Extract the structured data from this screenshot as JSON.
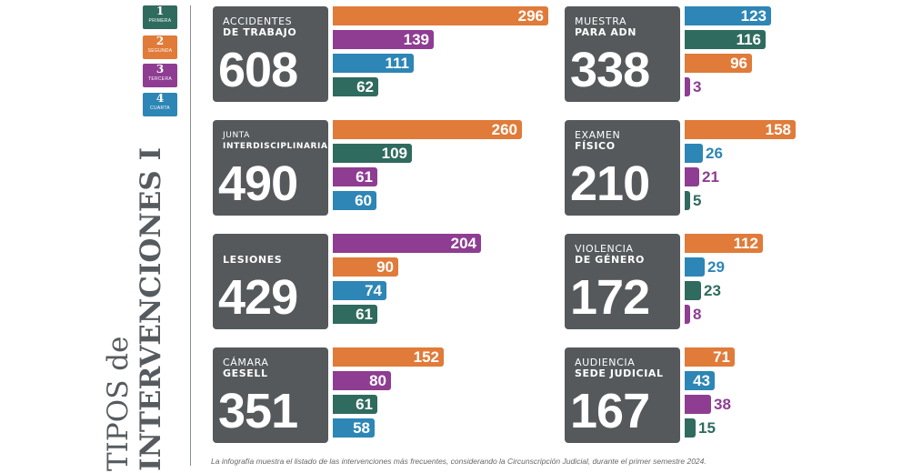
{
  "title": {
    "line1": "TIPOS de",
    "line2": "INTERVENCIONES I"
  },
  "legend": [
    {
      "num": "1",
      "label": "PRIMERA",
      "color": "#2f6b5e"
    },
    {
      "num": "2",
      "label": "SEGUNDA",
      "color": "#e07b39"
    },
    {
      "num": "3",
      "label": "TERCERA",
      "color": "#8e3d92"
    },
    {
      "num": "4",
      "label": "CUARTA",
      "color": "#2d86b5"
    }
  ],
  "footnote": "La infografía muestra el listado de las intervenciones más frecuentes, considerando la Circunscripción Judicial, durante el primer semestre  2024.",
  "colors": {
    "primera": "#2f6b5e",
    "segunda": "#e07b39",
    "tercera": "#8e3d92",
    "cuarta": "#2d86b5",
    "card": "#55595c"
  },
  "chart_data": {
    "type": "bar",
    "series_names": [
      "PRIMERA",
      "SEGUNDA",
      "TERCERA",
      "CUARTA"
    ],
    "groups": [
      {
        "label1": "ACCIDENTES",
        "label2": "DE TRABAJO",
        "total": 608,
        "bars": [
          {
            "series": "SEGUNDA",
            "value": 296
          },
          {
            "series": "TERCERA",
            "value": 139
          },
          {
            "series": "CUARTA",
            "value": 111
          },
          {
            "series": "PRIMERA",
            "value": 62
          }
        ]
      },
      {
        "label1": "JUNTA",
        "label2": "INTERDISCIPLINARIA",
        "total": 490,
        "bars": [
          {
            "series": "SEGUNDA",
            "value": 260
          },
          {
            "series": "PRIMERA",
            "value": 109
          },
          {
            "series": "TERCERA",
            "value": 61
          },
          {
            "series": "CUARTA",
            "value": 60
          }
        ]
      },
      {
        "label1": "",
        "label2": "LESIONES",
        "total": 429,
        "bars": [
          {
            "series": "TERCERA",
            "value": 204
          },
          {
            "series": "SEGUNDA",
            "value": 90
          },
          {
            "series": "CUARTA",
            "value": 74
          },
          {
            "series": "PRIMERA",
            "value": 61
          }
        ]
      },
      {
        "label1": "CÁMARA",
        "label2": "GESELL",
        "total": 351,
        "bars": [
          {
            "series": "SEGUNDA",
            "value": 152
          },
          {
            "series": "TERCERA",
            "value": 80
          },
          {
            "series": "PRIMERA",
            "value": 61
          },
          {
            "series": "CUARTA",
            "value": 58
          }
        ]
      },
      {
        "label1": "MUESTRA",
        "label2": "PARA ADN",
        "total": 338,
        "bars": [
          {
            "series": "CUARTA",
            "value": 123
          },
          {
            "series": "PRIMERA",
            "value": 116
          },
          {
            "series": "SEGUNDA",
            "value": 96
          },
          {
            "series": "TERCERA",
            "value": 3
          }
        ]
      },
      {
        "label1": "EXAMEN",
        "label2": "FÍSICO",
        "total": 210,
        "bars": [
          {
            "series": "SEGUNDA",
            "value": 158
          },
          {
            "series": "CUARTA",
            "value": 26
          },
          {
            "series": "TERCERA",
            "value": 21
          },
          {
            "series": "PRIMERA",
            "value": 5
          }
        ]
      },
      {
        "label1": "VIOLENCIA",
        "label2": "DE GÉNERO",
        "total": 172,
        "bars": [
          {
            "series": "SEGUNDA",
            "value": 112
          },
          {
            "series": "CUARTA",
            "value": 29
          },
          {
            "series": "PRIMERA",
            "value": 23
          },
          {
            "series": "TERCERA",
            "value": 8
          }
        ]
      },
      {
        "label1": "AUDIENCIA",
        "label2": "SEDE JUDICIAL",
        "total": 167,
        "bars": [
          {
            "series": "SEGUNDA",
            "value": 71
          },
          {
            "series": "CUARTA",
            "value": 43
          },
          {
            "series": "TERCERA",
            "value": 38
          },
          {
            "series": "PRIMERA",
            "value": 15
          }
        ]
      }
    ]
  }
}
